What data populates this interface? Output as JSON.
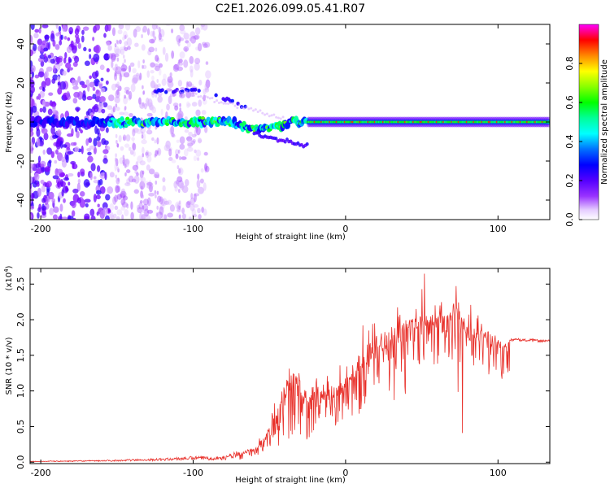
{
  "figure_title": "C2E1.2026.099.05.41.R07",
  "chart_data": [
    {
      "type": "heatmap",
      "name": "spectrogram",
      "xlabel": "Height of straight line (km)",
      "ylabel": "Frequency (Hz)",
      "xlim": [
        -207,
        134
      ],
      "ylim": [
        -50,
        50
      ],
      "xticks": [
        -200,
        -100,
        0,
        100
      ],
      "yticks": [
        -40,
        -20,
        0,
        20,
        40
      ],
      "colorbar": {
        "label": "Normalized spectral amplitude",
        "range": [
          0,
          1
        ],
        "ticks": [
          0.0,
          0.2,
          0.4,
          0.6,
          0.8
        ],
        "colormap": [
          "#ffffff",
          "#cc99ff",
          "#7f00ff",
          "#4000ff",
          "#0000ff",
          "#0080ff",
          "#00ffff",
          "#00ff80",
          "#00ff00",
          "#80ff00",
          "#ffff00",
          "#ff8000",
          "#ff0000",
          "#ff00ff"
        ]
      },
      "features": [
        {
          "name": "main band",
          "x_range": [
            -207,
            134
          ],
          "frequency_hz": 0
        },
        {
          "name": "upper harmonic",
          "x_range": [
            -125,
            -95
          ],
          "frequency_hz": 16
        },
        {
          "name": "upper harmonic 2",
          "x_range": [
            -85,
            -65
          ],
          "frequency_hz": 14
        },
        {
          "name": "lower branch",
          "x_range": [
            -60,
            -35
          ],
          "frequency_hz": -10
        },
        {
          "name": "noisy region",
          "x_range": [
            -207,
            -150
          ],
          "frequency_hz": [
            -50,
            50
          ]
        }
      ]
    },
    {
      "type": "line",
      "name": "snr",
      "xlabel": "Height of straight line (km)",
      "ylabel": "SNR (10 * v/v)",
      "y_multiplier": "(x10",
      "y_multiplier_exp": "4",
      "y_multiplier_close": ")",
      "xlim": [
        -207,
        134
      ],
      "ylim": [
        -0.02,
        2.72
      ],
      "xticks": [
        -200,
        -100,
        0,
        100
      ],
      "yticks": [
        0.0,
        0.5,
        1.0,
        1.5,
        2.0,
        2.5
      ],
      "color": "#e8302a",
      "envelope": [
        [
          -207,
          0.01
        ],
        [
          -160,
          0.02
        ],
        [
          -120,
          0.04
        ],
        [
          -100,
          0.06
        ],
        [
          -80,
          0.06
        ],
        [
          -70,
          0.12
        ],
        [
          -60,
          0.2
        ],
        [
          -52,
          0.4
        ],
        [
          -45,
          0.85
        ],
        [
          -40,
          1.1
        ],
        [
          -35,
          1.3
        ],
        [
          -30,
          1.15
        ],
        [
          -25,
          1.05
        ],
        [
          -20,
          1.1
        ],
        [
          -10,
          1.0
        ],
        [
          0,
          1.2
        ],
        [
          10,
          1.55
        ],
        [
          20,
          1.8
        ],
        [
          30,
          1.9
        ],
        [
          40,
          2.0
        ],
        [
          50,
          2.05
        ],
        [
          60,
          2.1
        ],
        [
          68,
          2.2
        ],
        [
          74,
          2.2
        ],
        [
          80,
          1.9
        ],
        [
          90,
          1.85
        ],
        [
          100,
          1.8
        ],
        [
          104,
          1.75
        ],
        [
          108,
          1.72
        ],
        [
          134,
          1.7
        ]
      ]
    }
  ]
}
